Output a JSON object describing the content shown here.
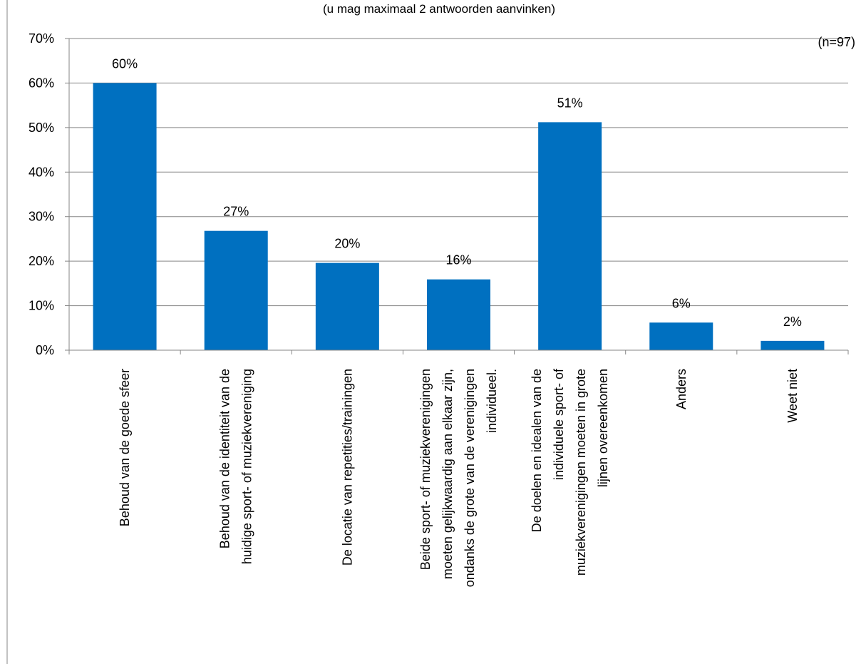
{
  "chart_data": {
    "type": "bar",
    "subtitle": "(u mag maximaal 2 antwoorden aanvinken)",
    "note": "(n=97)",
    "categories": [
      "Behoud van de goede sfeer",
      "Behoud van de identiteit van de huidige sport- of muziekvereniging",
      "De locatie van repetities/trainingen",
      "Beide sport- of muziekverenigingen moeten gelijkwaardig aan elkaar zijn, ondanks de grote van de verenigingen individueel.",
      "De doelen en idealen van de individuele sport- of muziekverenigingen moeten in grote lijnen overeenkomen",
      "Anders",
      "Weet niet"
    ],
    "category_lines": [
      [
        "Behoud van de goede sfeer"
      ],
      [
        "Behoud van de identiteit van de",
        "huidige sport- of muziekvereniging"
      ],
      [
        "De locatie van repetities/trainingen"
      ],
      [
        "Beide sport- of muziekverenigingen",
        "moeten gelijkwaardig aan elkaar zijn,",
        "ondanks de grote van de verenigingen",
        "individueel."
      ],
      [
        "De doelen en idealen van de",
        "individuele sport- of",
        "muziekverenigingen moeten in grote",
        "lijnen overeenkomen"
      ],
      [
        "Anders"
      ],
      [
        "Weet niet"
      ]
    ],
    "values": [
      60,
      26.8,
      19.6,
      15.9,
      51.2,
      6.2,
      2.1
    ],
    "data_labels": [
      "60%",
      "27%",
      "20%",
      "16%",
      "51%",
      "6%",
      "2%"
    ],
    "yticks": [
      "0%",
      "10%",
      "20%",
      "30%",
      "40%",
      "50%",
      "60%",
      "70%"
    ],
    "ylim": [
      0,
      70
    ],
    "grid": true,
    "bar_color": "#0070C0",
    "grid_color": "#868686"
  }
}
